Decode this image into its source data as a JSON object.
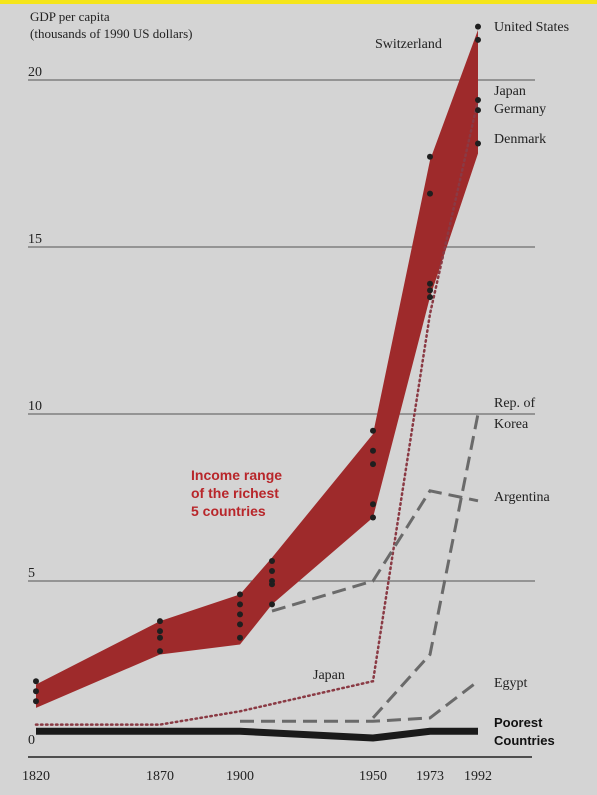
{
  "chart_data": {
    "type": "line",
    "ylabel_lines": [
      "GDP per capita",
      "(thousands of 1990 US dollars)"
    ],
    "x_ticks": [
      1820,
      1870,
      1900,
      1950,
      1973,
      1992
    ],
    "y_ticks": [
      0,
      5,
      10,
      15,
      20
    ],
    "ylim": [
      0,
      21.5
    ],
    "grid": true,
    "band": {
      "label_lines": [
        "Income range",
        "of the richest",
        "5 countries"
      ],
      "color": "#9e2a2b",
      "x": [
        1820,
        1870,
        1900,
        1913,
        1950,
        1973,
        1992
      ],
      "upper": [
        1.9,
        3.8,
        4.6,
        5.7,
        9.4,
        17.6,
        21.5
      ],
      "lower": [
        1.2,
        2.8,
        3.1,
        4.3,
        6.9,
        13.5,
        17.8
      ]
    },
    "points": [
      {
        "x": 1820,
        "y": [
          2.0,
          1.7,
          1.4
        ]
      },
      {
        "x": 1870,
        "y": [
          3.8,
          3.5,
          3.3,
          2.9
        ]
      },
      {
        "x": 1900,
        "y": [
          4.6,
          4.3,
          4.0,
          3.7,
          3.3
        ]
      },
      {
        "x": 1913,
        "y": [
          5.6,
          5.3,
          5.0,
          4.9,
          4.3
        ]
      },
      {
        "x": 1950,
        "y": [
          9.5,
          8.9,
          8.5,
          7.3,
          6.9
        ]
      },
      {
        "x": 1973,
        "y": [
          17.7,
          16.6,
          13.9,
          13.7,
          13.5
        ]
      },
      {
        "x": 1992,
        "y": [
          21.6,
          21.2,
          19.4,
          19.1,
          18.1
        ]
      }
    ],
    "series": [
      {
        "name": "Japan",
        "style": "dotted",
        "x": [
          1820,
          1870,
          1900,
          1950,
          1973,
          1992
        ],
        "y": [
          0.7,
          0.7,
          1.1,
          2.0,
          13.0,
          19.4
        ]
      },
      {
        "name": "Argentina",
        "style": "dashed",
        "x": [
          1913,
          1950,
          1973,
          1992
        ],
        "y": [
          4.1,
          5.0,
          7.7,
          7.4
        ]
      },
      {
        "name": "Rep. of Korea",
        "style": "dashed",
        "x": [
          1950,
          1973,
          1992
        ],
        "y": [
          0.9,
          2.8,
          10.0
        ]
      },
      {
        "name": "Egypt",
        "style": "dashed",
        "x": [
          1900,
          1950,
          1973,
          1992
        ],
        "y": [
          0.8,
          0.8,
          0.9,
          2.0
        ]
      },
      {
        "name": "Poorest Countries",
        "style": "thick",
        "x": [
          1820,
          1870,
          1900,
          1950,
          1973,
          1992
        ],
        "y": [
          0.5,
          0.5,
          0.5,
          0.3,
          0.5,
          0.5
        ]
      }
    ],
    "labels": {
      "united_states": "United States",
      "switzerland": "Switzerland",
      "japan_top": "Japan",
      "germany": "Germany",
      "denmark": "Denmark",
      "korea_line1": "Rep. of",
      "korea_line2": "Korea",
      "argentina": "Argentina",
      "japan_low": "Japan",
      "egypt": "Egypt",
      "poorest_line1": "Poorest",
      "poorest_line2": "Countries"
    }
  }
}
